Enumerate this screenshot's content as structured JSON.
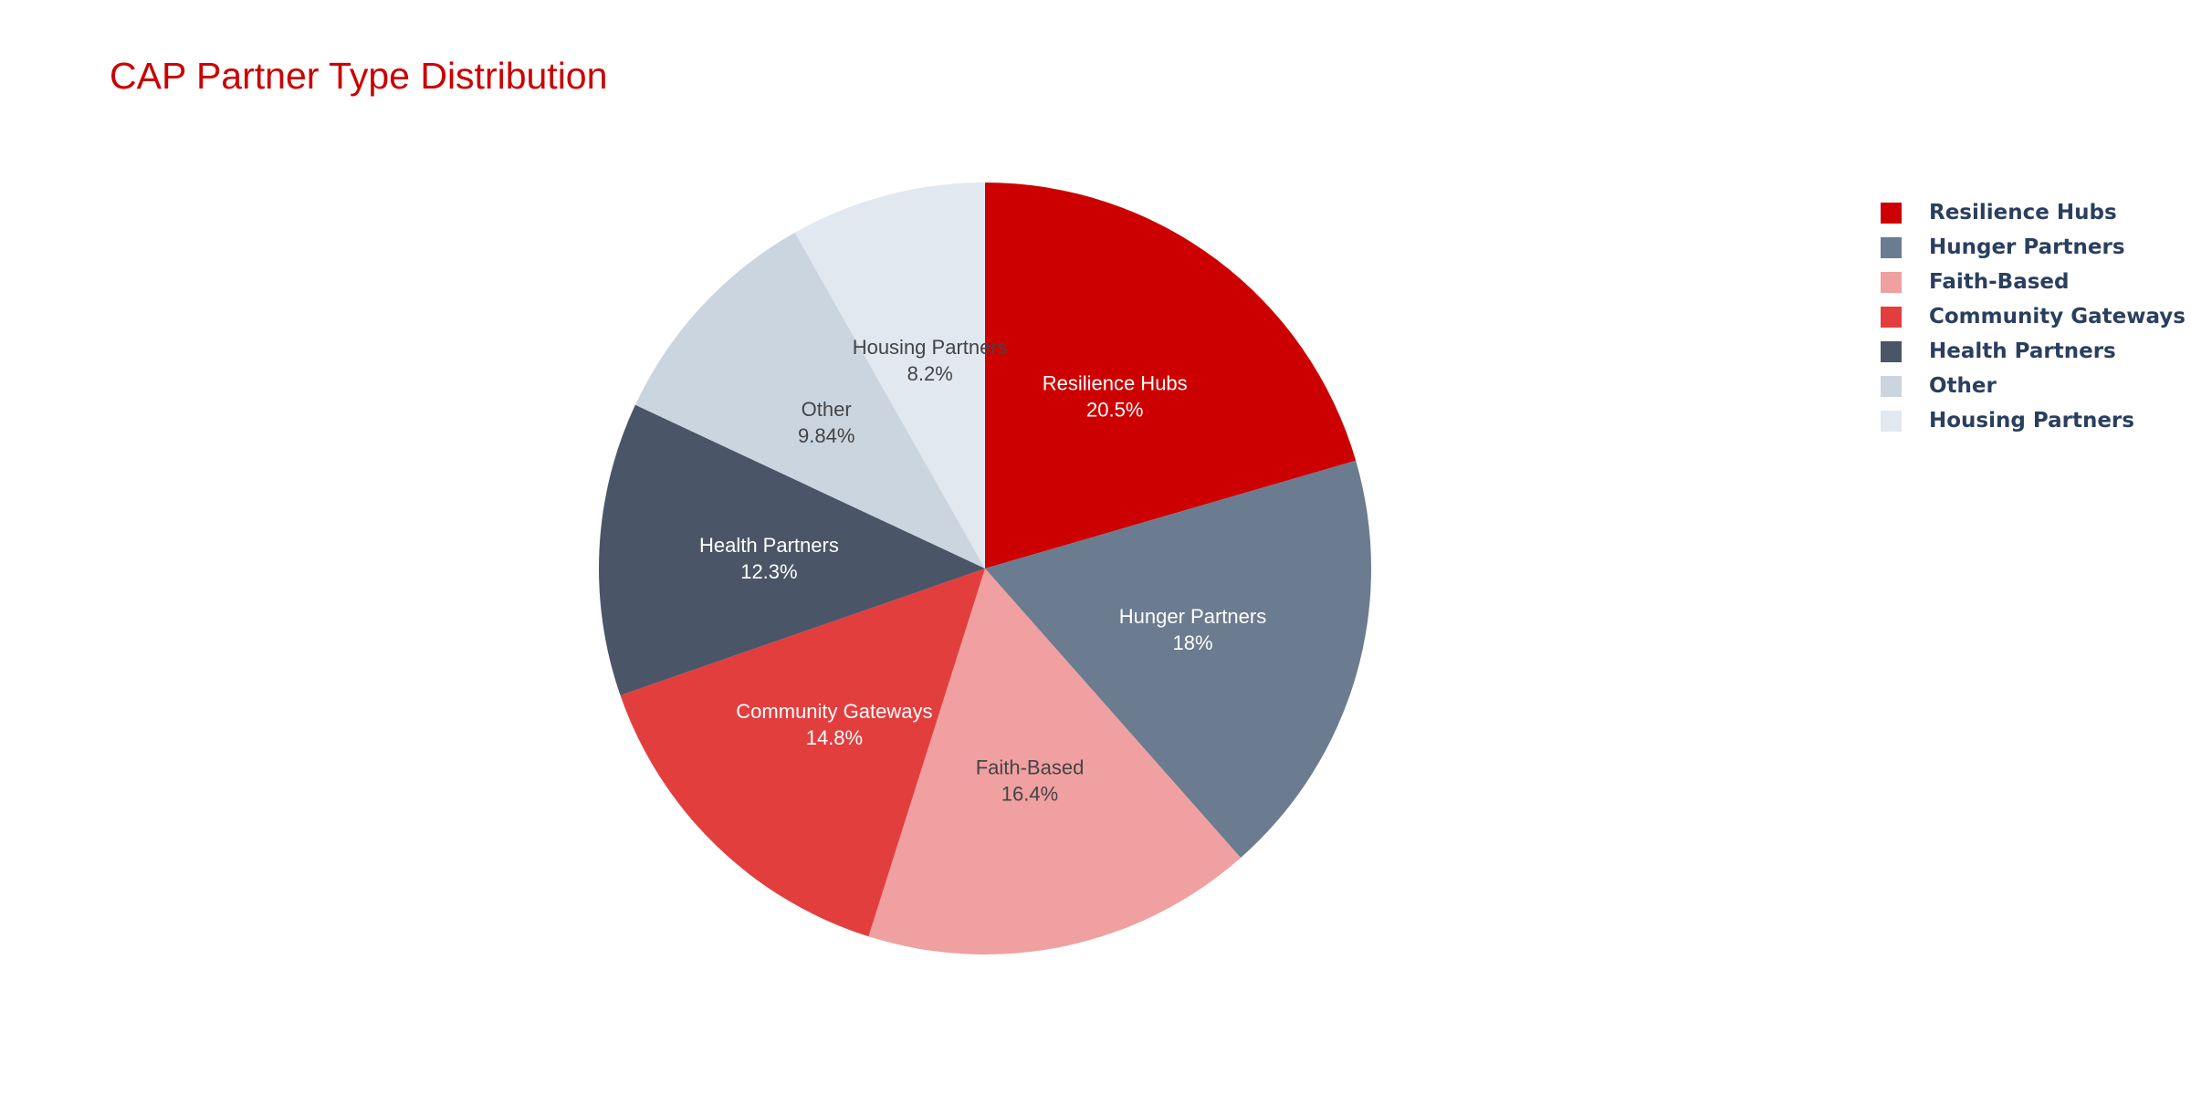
{
  "title": "CAP Partner Type Distribution",
  "chart_data": {
    "type": "pie",
    "title": "CAP Partner Type Distribution",
    "sort": "descending",
    "direction": "clockwise",
    "start": "12 o'clock",
    "legend_position": "top-right",
    "slices": [
      {
        "label": "Resilience Hubs",
        "percent_text": "20.5%",
        "percent": 20.5,
        "color": "#CC0000",
        "text_color": "#ffffff"
      },
      {
        "label": "Hunger Partners",
        "percent_text": "18%",
        "percent": 18.0,
        "color": "#6B7B90",
        "text_color": "#ffffff"
      },
      {
        "label": "Faith-Based",
        "percent_text": "16.4%",
        "percent": 16.4,
        "color": "#F0A0A0",
        "text_color": "#444444"
      },
      {
        "label": "Community Gateways",
        "percent_text": "14.8%",
        "percent": 14.8,
        "color": "#E33E3E",
        "text_color": "#ffffff"
      },
      {
        "label": "Health Partners",
        "percent_text": "12.3%",
        "percent": 12.3,
        "color": "#4A5568",
        "text_color": "#ffffff"
      },
      {
        "label": "Other",
        "percent_text": "9.84%",
        "percent": 9.84,
        "color": "#CBD5E0",
        "text_color": "#444444"
      },
      {
        "label": "Housing Partners",
        "percent_text": "8.2%",
        "percent": 8.2,
        "color": "#E2E8F0",
        "text_color": "#444444"
      }
    ]
  }
}
